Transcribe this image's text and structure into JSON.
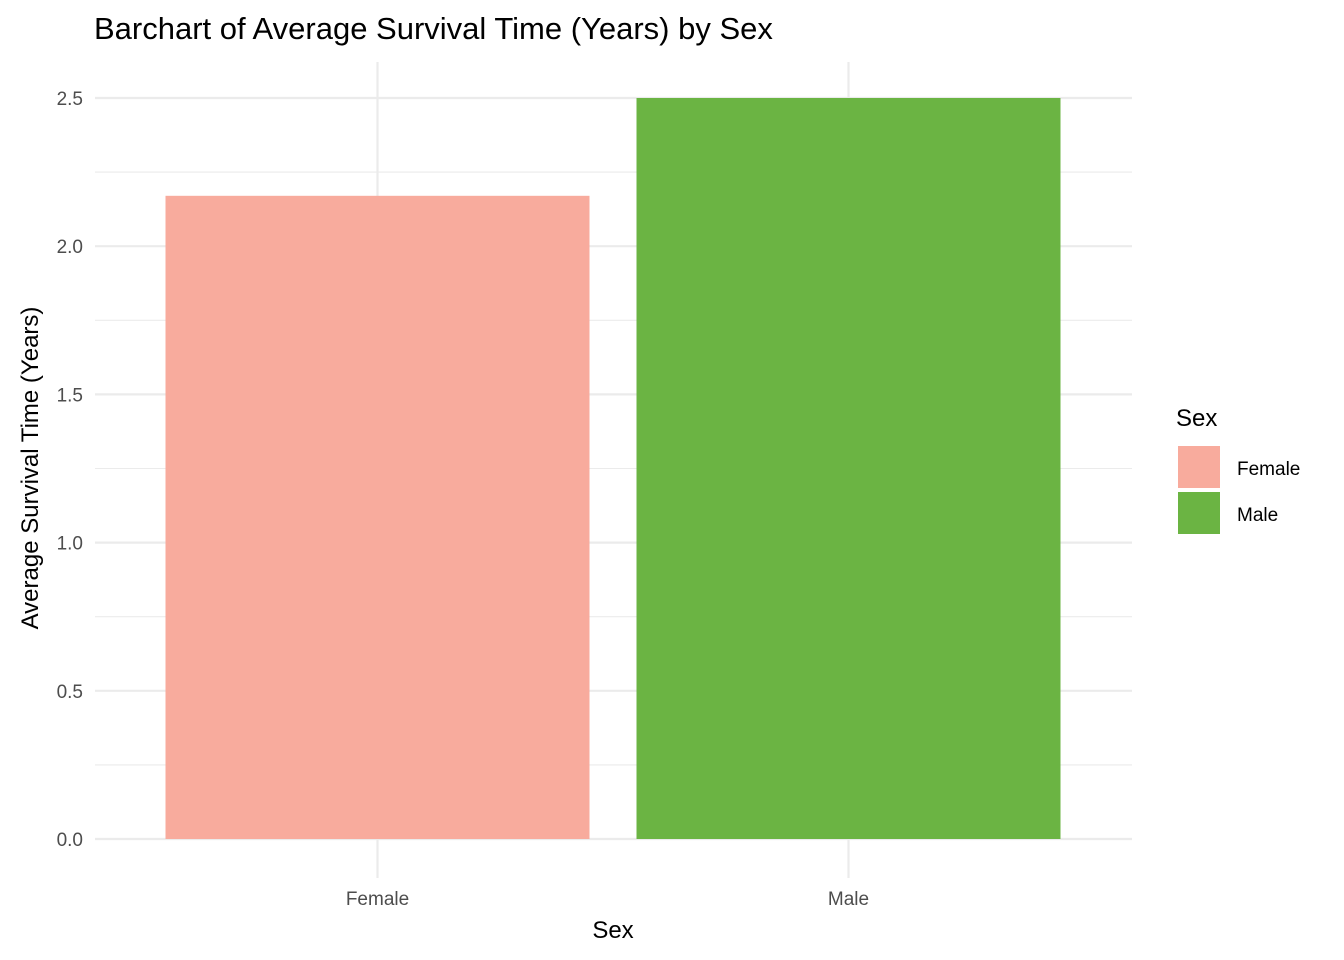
{
  "chart_data": {
    "type": "bar",
    "title": "Barchart of Average Survival Time (Years) by Sex",
    "xlabel": "Sex",
    "ylabel": "Average Survival Time (Years)",
    "categories": [
      "Female",
      "Male"
    ],
    "values": [
      2.17,
      2.5
    ],
    "colors": [
      "#F8AB9D",
      "#6BB443"
    ],
    "ylim": [
      0,
      2.5
    ],
    "yticks": [
      0.0,
      0.5,
      1.0,
      1.5,
      2.0,
      2.5
    ],
    "ytick_labels": [
      "0.0",
      "0.5",
      "1.0",
      "1.5",
      "2.0",
      "2.5"
    ],
    "grid": true,
    "legend": {
      "title": "Sex",
      "position": "right",
      "entries": [
        "Female",
        "Male"
      ]
    }
  }
}
